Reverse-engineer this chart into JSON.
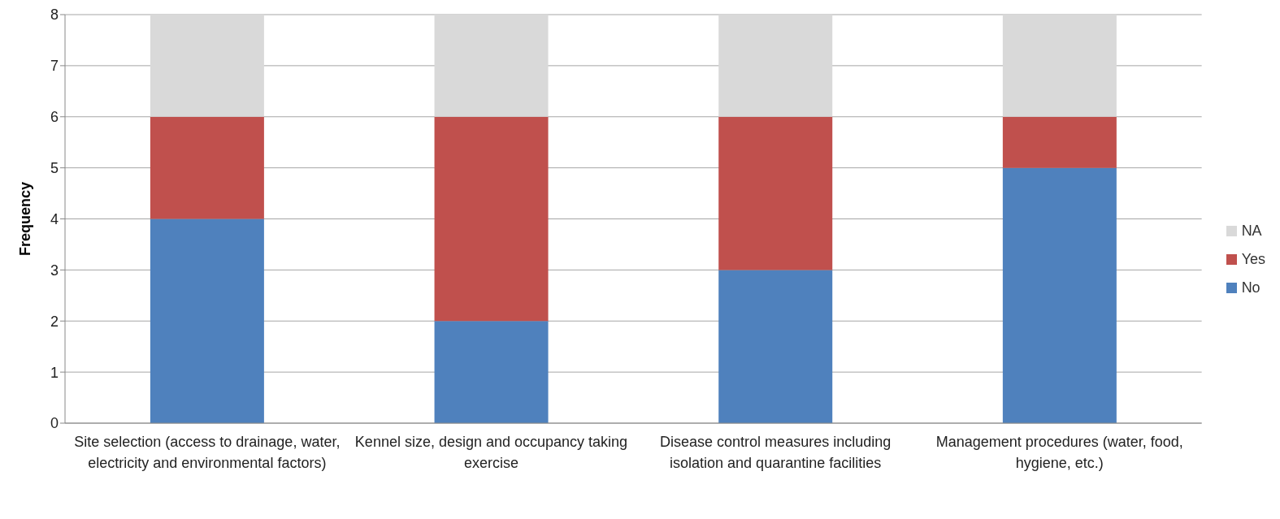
{
  "chart_data": {
    "type": "bar",
    "stacked": true,
    "ylabel": "Frequency",
    "categories": [
      "Site selection (access to drainage, water, electricity and environmental factors)",
      "Kennel size, design and occupancy taking exercise",
      "Disease control measures including isolation and quarantine facilities",
      "Management procedures (water, food, hygiene, etc.)"
    ],
    "series": [
      {
        "name": "No",
        "color": "#4f81bd",
        "values": [
          4,
          2,
          3,
          5
        ]
      },
      {
        "name": "Yes",
        "color": "#c0504d",
        "values": [
          2,
          4,
          3,
          1
        ]
      },
      {
        "name": "NA",
        "color": "#d9d9d9",
        "values": [
          2,
          2,
          2,
          2
        ]
      }
    ],
    "ylim": [
      0,
      8
    ],
    "yticks": [
      0,
      1,
      2,
      3,
      4,
      5,
      6,
      7,
      8
    ],
    "grid": "y",
    "legend": "right"
  }
}
